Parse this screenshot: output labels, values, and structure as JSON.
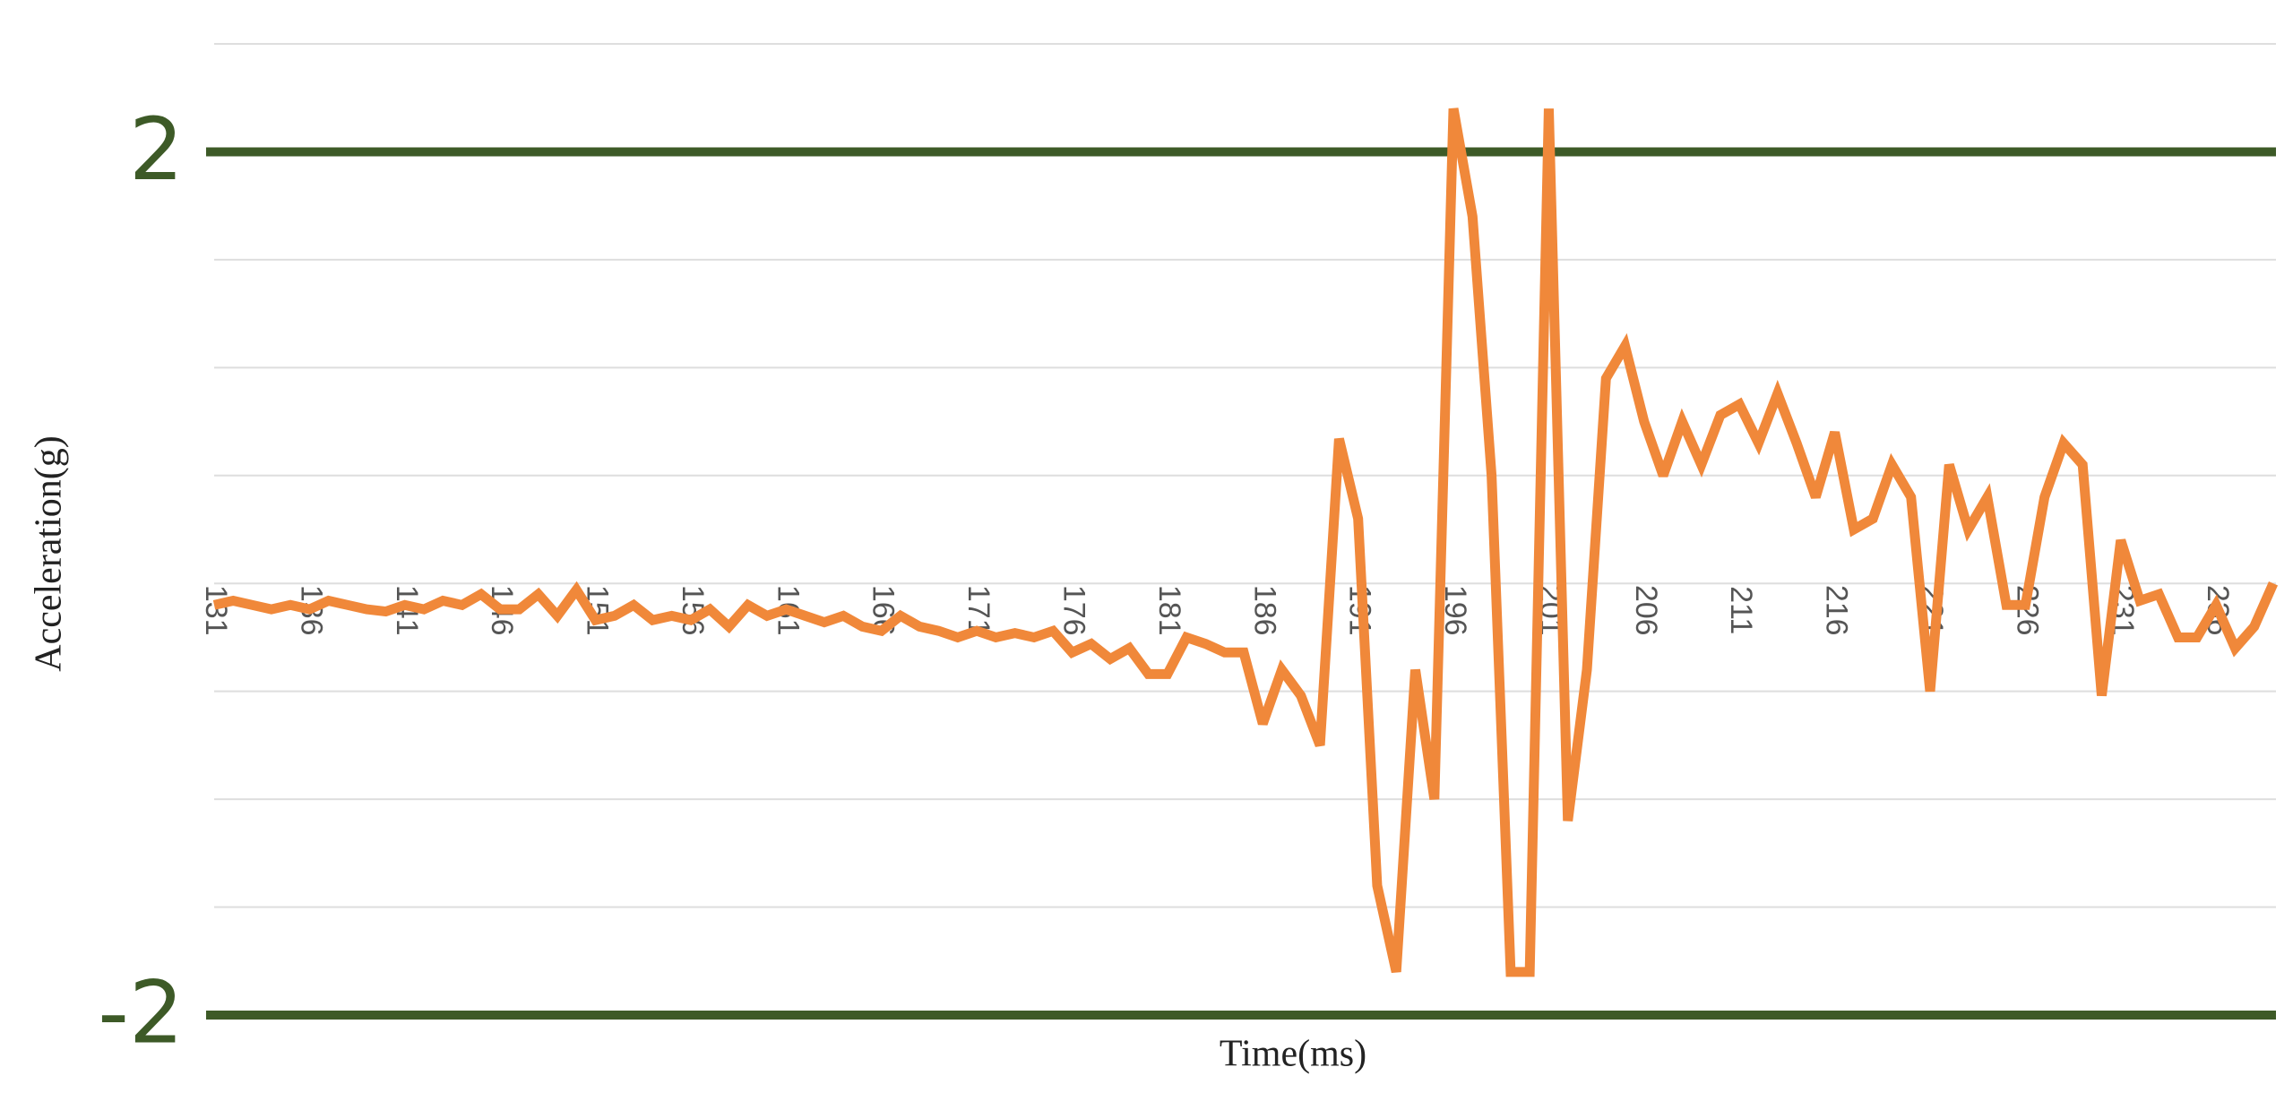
{
  "chart_data": {
    "type": "line",
    "x_label": "Time(ms)",
    "y_label": "Acceleration(g)",
    "x": [
      131,
      132,
      133,
      134,
      135,
      136,
      137,
      138,
      139,
      140,
      141,
      142,
      143,
      144,
      145,
      146,
      147,
      148,
      149,
      150,
      151,
      152,
      153,
      154,
      155,
      156,
      157,
      158,
      159,
      160,
      161,
      162,
      163,
      164,
      165,
      166,
      167,
      168,
      169,
      170,
      171,
      172,
      173,
      174,
      175,
      176,
      177,
      178,
      179,
      180,
      181,
      182,
      183,
      184,
      185,
      186,
      187,
      188,
      189,
      190,
      191,
      192,
      193,
      194,
      195,
      196,
      197,
      198,
      199,
      200,
      201,
      202,
      203,
      204,
      205,
      206,
      207,
      208,
      209,
      210,
      211,
      212,
      213,
      214,
      215,
      216,
      217,
      218,
      219,
      220,
      221,
      222,
      223,
      224,
      225,
      226,
      227,
      228,
      229,
      230,
      231,
      232,
      233,
      234,
      235,
      236,
      237,
      238,
      239
    ],
    "series": [
      {
        "color": "#f0883a",
        "values": [
          -0.1,
          -0.08,
          -0.1,
          -0.12,
          -0.1,
          -0.12,
          -0.08,
          -0.1,
          -0.12,
          -0.13,
          -0.1,
          -0.12,
          -0.08,
          -0.1,
          -0.05,
          -0.12,
          -0.12,
          -0.05,
          -0.15,
          -0.03,
          -0.17,
          -0.15,
          -0.1,
          -0.17,
          -0.15,
          -0.17,
          -0.12,
          -0.2,
          -0.1,
          -0.15,
          -0.12,
          -0.15,
          -0.18,
          -0.15,
          -0.2,
          -0.22,
          -0.15,
          -0.2,
          -0.22,
          -0.25,
          -0.22,
          -0.25,
          -0.23,
          -0.25,
          -0.22,
          -0.32,
          -0.28,
          -0.35,
          -0.3,
          -0.42,
          -0.42,
          -0.25,
          -0.28,
          -0.32,
          -0.32,
          -0.65,
          -0.4,
          -0.52,
          -0.75,
          0.67,
          0.3,
          -1.4,
          -1.8,
          -0.4,
          -1.0,
          2.2,
          1.7,
          0.5,
          -1.8,
          -1.8,
          2.2,
          -1.1,
          -0.4,
          0.95,
          1.1,
          0.75,
          0.5,
          0.75,
          0.55,
          0.78,
          0.83,
          0.65,
          0.88,
          0.65,
          0.4,
          0.7,
          0.25,
          0.3,
          0.55,
          0.4,
          -0.5,
          0.55,
          0.25,
          0.4,
          -0.1,
          -0.1,
          0.4,
          0.65,
          0.55,
          -0.52,
          0.2,
          -0.08,
          -0.05,
          -0.25,
          -0.25,
          -0.1,
          -0.3,
          -0.2,
          0.0
        ]
      }
    ],
    "xlim": [
      131,
      239
    ],
    "xticks": [
      131,
      136,
      141,
      146,
      151,
      156,
      161,
      166,
      171,
      176,
      181,
      186,
      191,
      196,
      201,
      206,
      211,
      216,
      221,
      226,
      231,
      236
    ],
    "ylim": [
      -2,
      2.5
    ],
    "yticks": [
      -2,
      2
    ],
    "ytick_color": "#3d5a27",
    "grid_yticks": [
      -2,
      -1.5,
      -1,
      -0.5,
      0,
      0.5,
      1,
      1.5,
      2,
      2.5
    ],
    "grid": true
  }
}
